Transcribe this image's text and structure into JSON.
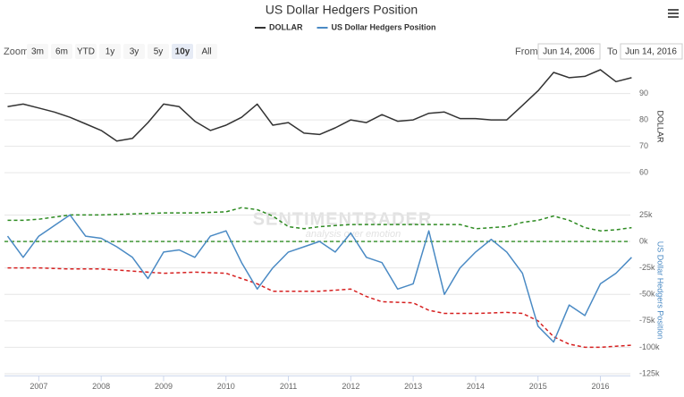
{
  "ui": {
    "zoom_label": "Zoom",
    "zoom_buttons": [
      {
        "label": "3m",
        "selected": false
      },
      {
        "label": "6m",
        "selected": false
      },
      {
        "label": "YTD",
        "selected": false
      },
      {
        "label": "1y",
        "selected": false
      },
      {
        "label": "3y",
        "selected": false
      },
      {
        "label": "5y",
        "selected": false
      },
      {
        "label": "10y",
        "selected": true
      },
      {
        "label": "All",
        "selected": false
      }
    ],
    "from_label": "From",
    "from": "Jun 14, 2006",
    "to_label": "To",
    "to": "Jun 14, 2016"
  },
  "chart_data": {
    "type": "line",
    "title": "US Dollar Hedgers Position",
    "watermark": {
      "title": "SENTIMENTRADER",
      "subtitle": "analysis over emotion"
    },
    "x": [
      2006.5,
      2006.75,
      2007,
      2007.25,
      2007.5,
      2007.75,
      2008,
      2008.25,
      2008.5,
      2008.75,
      2009,
      2009.25,
      2009.5,
      2009.75,
      2010,
      2010.25,
      2010.5,
      2010.75,
      2011,
      2011.25,
      2011.5,
      2011.75,
      2012,
      2012.25,
      2012.5,
      2012.75,
      2013,
      2013.25,
      2013.5,
      2013.75,
      2014,
      2014.25,
      2014.5,
      2014.75,
      2015,
      2015.25,
      2015.5,
      2015.75,
      2016,
      2016.25,
      2016.5
    ],
    "xlim": [
      2006.45,
      2016.48
    ],
    "xticks": [
      2007,
      2008,
      2009,
      2010,
      2011,
      2012,
      2013,
      2014,
      2015,
      2016
    ],
    "panes": [
      {
        "ylim": [
          56,
          99
        ],
        "yticks": [
          60,
          70,
          80,
          90
        ],
        "grid": true,
        "series": [
          {
            "name": "DOLLAR",
            "color": "#333333",
            "dashed": false,
            "values": [
              85,
              86,
              84.5,
              83,
              81,
              78.5,
              76,
              72,
              73,
              79,
              86,
              85,
              79.5,
              76,
              78,
              81,
              86,
              78,
              79,
              75,
              74.5,
              77,
              80,
              79,
              82,
              79.5,
              80,
              82.5,
              83,
              80.5,
              80.5,
              80,
              80,
              85.5,
              91,
              98,
              96,
              96.5,
              99,
              94.5,
              96
            ]
          }
        ]
      },
      {
        "ylim": [
          -127000,
          35000
        ],
        "yticks": [
          {
            "value": 25000,
            "label": "25k"
          },
          {
            "value": 0,
            "label": "0k"
          },
          {
            "value": -25000,
            "label": "-25k"
          },
          {
            "value": -50000,
            "label": "-50k"
          },
          {
            "value": -75000,
            "label": "-75k"
          },
          {
            "value": -100000,
            "label": "-100k"
          },
          {
            "value": -125000,
            "label": "-125k"
          }
        ],
        "grid": true,
        "plot_lines": [
          {
            "value": 0,
            "color": "#2e8b22"
          }
        ],
        "series": [
          {
            "name": "US Dollar Hedgers Position",
            "color": "#4a8ac4",
            "dashed": false,
            "values": [
              5000,
              -15000,
              5000,
              15000,
              25000,
              5000,
              3000,
              -5000,
              -15000,
              -35000,
              -10000,
              -8000,
              -15000,
              5000,
              10000,
              -20000,
              -45000,
              -25000,
              -10000,
              -5000,
              0,
              -10000,
              8000,
              -15000,
              -20000,
              -45000,
              -40000,
              10000,
              -50000,
              -25000,
              -10000,
              2000,
              -10000,
              -30000,
              -80000,
              -95000,
              -60000,
              -70000,
              -40000,
              -30000,
              -15000
            ]
          },
          {
            "color": "#2e8b22",
            "dashed": true,
            "values": [
              20000,
              20000,
              21000,
              23000,
              25000,
              25000,
              25000,
              25500,
              26000,
              26500,
              27000,
              27000,
              27000,
              27500,
              28000,
              32000,
              30000,
              24000,
              14000,
              12000,
              14000,
              15000,
              16000,
              16000,
              16000,
              16000,
              16000,
              16000,
              16000,
              16000,
              12000,
              13000,
              14000,
              18000,
              20000,
              24000,
              20000,
              13000,
              10000,
              11000,
              13000
            ]
          },
          {
            "color": "#d62020",
            "dashed": true,
            "values": [
              -25000,
              -25000,
              -25000,
              -25500,
              -26000,
              -26000,
              -26000,
              -27000,
              -28000,
              -29000,
              -30000,
              -29500,
              -29000,
              -29500,
              -30000,
              -35000,
              -40000,
              -47000,
              -47000,
              -47000,
              -47000,
              -46000,
              -45000,
              -52000,
              -57000,
              -57500,
              -58000,
              -65000,
              -68000,
              -68000,
              -68000,
              -67500,
              -67000,
              -68000,
              -75000,
              -90000,
              -97000,
              -100000,
              -100000,
              -99000,
              -98000
            ]
          }
        ]
      }
    ]
  }
}
